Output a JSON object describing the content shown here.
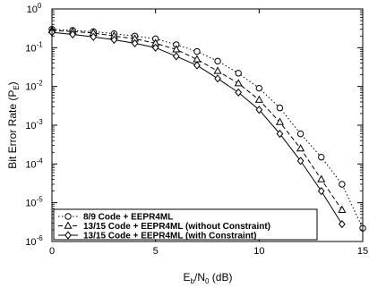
{
  "chart_data": {
    "type": "line",
    "xlabel": {
      "base": "E",
      "sub1": "b",
      "mid": "/N",
      "sub2": "0",
      "unit": " (dB)"
    },
    "ylabel": {
      "base": "Bit Error Rate (P",
      "sub": "E",
      "close": ")"
    },
    "xlim": [
      0,
      15
    ],
    "ylim_log10": [
      -6,
      0
    ],
    "y_scale": "log",
    "x_ticks": [
      0,
      5,
      10,
      15
    ],
    "x_tick_labels": [
      "0",
      "5",
      "10",
      "15"
    ],
    "y_tick_exponents": [
      0,
      -1,
      -2,
      -3,
      -4,
      -5,
      -6
    ],
    "y_tick_labels": [
      "10",
      "10",
      "10",
      "10",
      "10",
      "10",
      "10"
    ],
    "y_tick_sups": [
      "0",
      "-1",
      "-2",
      "-3",
      "-4",
      "-5",
      "-6"
    ],
    "grid": false,
    "legend_position": "bottom-left",
    "series": [
      {
        "name": "8/9 Code + EEPR4ML",
        "marker": "circle",
        "line_style": "dotted",
        "x": [
          0,
          1,
          2,
          3,
          4,
          5,
          6,
          7,
          8,
          9,
          10,
          11,
          12,
          13,
          14,
          15
        ],
        "y": [
          0.3,
          0.28,
          0.26,
          0.23,
          0.2,
          0.17,
          0.12,
          0.08,
          0.045,
          0.022,
          0.009,
          0.0028,
          0.0006,
          0.00015,
          3e-05,
          2.2e-06
        ]
      },
      {
        "name": "13/15 Code + EEPR4ML (without Constraint)",
        "marker": "triangle",
        "line_style": "dashed",
        "x": [
          0,
          1,
          2,
          3,
          4,
          5,
          6,
          7,
          8,
          9,
          10,
          11,
          12,
          13,
          14
        ],
        "y": [
          0.28,
          0.26,
          0.24,
          0.2,
          0.17,
          0.13,
          0.09,
          0.05,
          0.025,
          0.012,
          0.0045,
          0.0012,
          0.00025,
          4e-05,
          6.5e-06
        ]
      },
      {
        "name": "13/15 Code + EEPR4ML (with Constraint)",
        "marker": "diamond",
        "line_style": "solid",
        "x": [
          0,
          1,
          2,
          3,
          4,
          5,
          6,
          7,
          8,
          9,
          10,
          11,
          12,
          13,
          14
        ],
        "y": [
          0.25,
          0.22,
          0.19,
          0.16,
          0.13,
          0.1,
          0.06,
          0.035,
          0.016,
          0.007,
          0.0025,
          0.0006,
          0.00012,
          2e-05,
          2.8e-06
        ]
      }
    ]
  }
}
